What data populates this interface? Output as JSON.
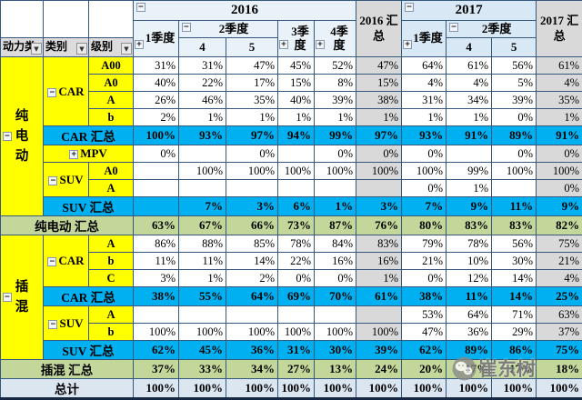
{
  "header": {
    "labels": [
      "动力类",
      "类别",
      "级别"
    ],
    "y2016": "2016",
    "y2017": "2017",
    "total2016": "2016 汇总",
    "total2017": "2017 汇总",
    "q16": [
      "1季度",
      "2季度",
      "3季度",
      "4季度"
    ],
    "q17": [
      "1季度",
      "2季度"
    ],
    "months": [
      "4",
      "5"
    ],
    "icons": {
      "collapse": "−",
      "expand": "+",
      "dropdown": "▼"
    }
  },
  "colors": {
    "subtotal_row": "#00B0F0",
    "grand_row": "#C4D79B",
    "total_row": "#DCE6F1",
    "label_bg": "#FFFF00",
    "summary_col": "#D9D9D9",
    "header_2017": "#D9E8F5",
    "grid": "#35587E"
  },
  "watermark": {
    "text": "崔东树",
    "icon": "wechat-icon"
  },
  "rows": [
    {
      "cls": "plain",
      "left": [
        {
          "t": "纯电动",
          "type": "power",
          "rs": 9,
          "btn": "collapse",
          "vert": true
        },
        {
          "t": "CAR",
          "type": "cat",
          "rs": 4,
          "btn": "collapse"
        },
        {
          "t": "A00",
          "type": "lvl"
        }
      ],
      "v": [
        "31%",
        "31%",
        "47%",
        "45%",
        "52%",
        "47%",
        "64%",
        "61%",
        "56%",
        "61%"
      ]
    },
    {
      "cls": "plain",
      "left": [
        {
          "t": "A0",
          "type": "lvl"
        }
      ],
      "v": [
        "40%",
        "22%",
        "17%",
        "15%",
        "8%",
        "15%",
        "4%",
        "4%",
        "5%",
        "4%"
      ]
    },
    {
      "cls": "plain",
      "left": [
        {
          "t": "A",
          "type": "lvl"
        }
      ],
      "v": [
        "26%",
        "46%",
        "35%",
        "40%",
        "39%",
        "38%",
        "31%",
        "34%",
        "39%",
        "35%"
      ]
    },
    {
      "cls": "plain",
      "left": [
        {
          "t": "b",
          "type": "lvl"
        }
      ],
      "v": [
        "2%",
        "1%",
        "1%",
        "1%",
        "1%",
        "1%",
        "1%",
        "1%",
        "0%",
        "1%"
      ]
    },
    {
      "cls": "blue",
      "left": [
        {
          "t": "CAR 汇总",
          "type": "sub",
          "cs": 2
        }
      ],
      "v": [
        "100%",
        "93%",
        "97%",
        "94%",
        "99%",
        "97%",
        "93%",
        "91%",
        "89%",
        "91%"
      ]
    },
    {
      "cls": "plain",
      "left": [
        {
          "t": "MPV",
          "type": "cat",
          "cs": 2,
          "btn": "expand"
        }
      ],
      "v": [
        "0%",
        "",
        "0%",
        "",
        "0%",
        "0%",
        "0%",
        "",
        "0%",
        "0%"
      ]
    },
    {
      "cls": "plain",
      "left": [
        {
          "t": "SUV",
          "type": "cat",
          "rs": 2,
          "btn": "collapse"
        },
        {
          "t": "A0",
          "type": "lvl"
        }
      ],
      "v": [
        "",
        "100%",
        "100%",
        "100%",
        "100%",
        "100%",
        "100%",
        "99%",
        "100%",
        "100%"
      ]
    },
    {
      "cls": "plain",
      "left": [
        {
          "t": "A",
          "type": "lvl"
        }
      ],
      "v": [
        "",
        "",
        "",
        "",
        "",
        "",
        "0%",
        "1%",
        "",
        "0%"
      ]
    },
    {
      "cls": "blue",
      "left": [
        {
          "t": "SUV 汇总",
          "type": "sub",
          "cs": 2
        }
      ],
      "v": [
        "",
        "7%",
        "3%",
        "6%",
        "1%",
        "3%",
        "7%",
        "9%",
        "11%",
        "9%"
      ]
    },
    {
      "cls": "green",
      "left": [
        {
          "t": "纯电动 汇总",
          "type": "grand",
          "cs": 3
        }
      ],
      "v": [
        "63%",
        "67%",
        "66%",
        "73%",
        "87%",
        "76%",
        "80%",
        "83%",
        "83%",
        "82%"
      ]
    },
    {
      "cls": "plain",
      "left": [
        {
          "t": "插混",
          "type": "power",
          "rs": 7,
          "btn": "collapse",
          "vert": true
        },
        {
          "t": "CAR",
          "type": "cat",
          "rs": 3,
          "btn": "collapse"
        },
        {
          "t": "A",
          "type": "lvl"
        }
      ],
      "v": [
        "86%",
        "88%",
        "85%",
        "78%",
        "84%",
        "83%",
        "79%",
        "78%",
        "56%",
        "75%"
      ]
    },
    {
      "cls": "plain",
      "left": [
        {
          "t": "b",
          "type": "lvl"
        }
      ],
      "v": [
        "11%",
        "11%",
        "14%",
        "22%",
        "16%",
        "16%",
        "21%",
        "10%",
        "30%",
        "21%"
      ]
    },
    {
      "cls": "plain",
      "left": [
        {
          "t": "C",
          "type": "lvl"
        }
      ],
      "v": [
        "3%",
        "1%",
        "2%",
        "0%",
        "0%",
        "1%",
        "0%",
        "12%",
        "14%",
        "4%"
      ]
    },
    {
      "cls": "blue",
      "left": [
        {
          "t": "CAR 汇总",
          "type": "sub",
          "cs": 2
        }
      ],
      "v": [
        "38%",
        "55%",
        "64%",
        "69%",
        "70%",
        "61%",
        "38%",
        "11%",
        "14%",
        "25%"
      ]
    },
    {
      "cls": "plain",
      "left": [
        {
          "t": "SUV",
          "type": "cat",
          "rs": 2,
          "btn": "collapse"
        },
        {
          "t": "A",
          "type": "lvl"
        }
      ],
      "v": [
        "",
        "",
        "",
        "",
        "",
        "",
        "53%",
        "64%",
        "71%",
        "63%"
      ]
    },
    {
      "cls": "plain",
      "left": [
        {
          "t": "b",
          "type": "lvl"
        }
      ],
      "v": [
        "100%",
        "100%",
        "100%",
        "100%",
        "100%",
        "100%",
        "47%",
        "36%",
        "29%",
        "37%"
      ]
    },
    {
      "cls": "blue",
      "left": [
        {
          "t": "SUV 汇总",
          "type": "sub",
          "cs": 2
        }
      ],
      "v": [
        "62%",
        "45%",
        "36%",
        "31%",
        "30%",
        "39%",
        "62%",
        "89%",
        "86%",
        "75%"
      ]
    },
    {
      "cls": "green",
      "left": [
        {
          "t": "插混 汇总",
          "type": "grand",
          "cs": 3
        }
      ],
      "v": [
        "37%",
        "33%",
        "34%",
        "27%",
        "13%",
        "24%",
        "20%",
        "17%",
        "17%",
        "18%"
      ]
    },
    {
      "cls": "total",
      "left": [
        {
          "t": "总计",
          "type": "totlab",
          "cs": 3
        }
      ],
      "v": [
        "100%",
        "100%",
        "100%",
        "100%",
        "100%",
        "100%",
        "100%",
        "100%",
        "100%",
        "100%"
      ]
    }
  ]
}
